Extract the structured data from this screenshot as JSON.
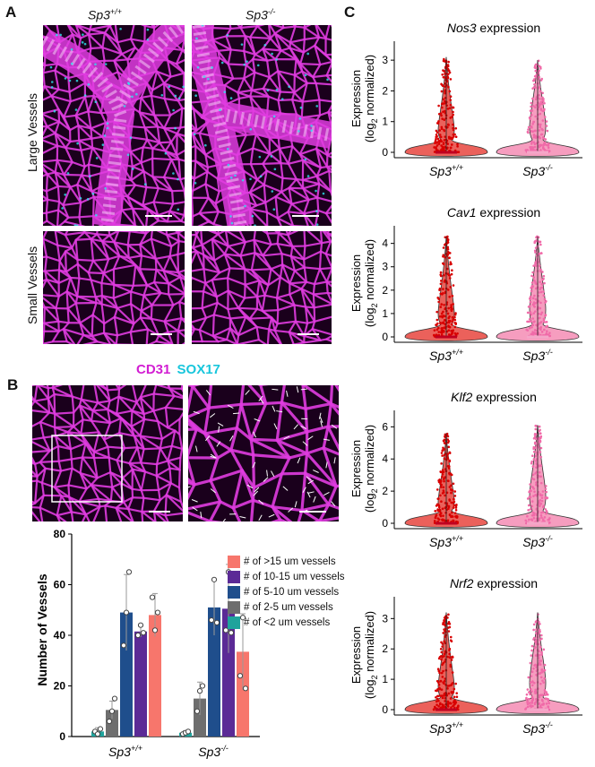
{
  "panels": {
    "a": "A",
    "b": "B",
    "c": "C"
  },
  "panel_a": {
    "col1": "Sp3",
    "col1_sup": "+/+",
    "col2": "Sp3",
    "col2_sup": "-/-",
    "row1": "Large Vessels",
    "row2": "Small Vessels"
  },
  "panel_b": {
    "stain1": "CD31",
    "stain2": "SOX17",
    "stain1_color": "#d21ed2",
    "stain2_color": "#18c6dc"
  },
  "colors": {
    "magenta": "#e03ce0",
    "cyan": "#2ee6f0",
    "wt_violin": "#e8453e",
    "wt_points": "#d80000",
    "ko_violin": "#f48cb4",
    "ko_points": "#f06aa8"
  },
  "chart_data": [
    {
      "type": "bar",
      "ylabel": "Number of Vessels",
      "ylim": [
        0,
        80
      ],
      "yticks": [
        "0",
        "20",
        "40",
        "60",
        "80"
      ],
      "categories": [
        "Sp3+/+",
        "Sp3-/-"
      ],
      "category_labels": [
        {
          "main": "Sp3",
          "sup": "+/+"
        },
        {
          "main": "Sp3",
          "sup": "-/-"
        }
      ],
      "legend": "top-right",
      "series": [
        {
          "name": "# of <2 um vessels",
          "color": "#1fa39c",
          "values": [
            2,
            1.5
          ],
          "err": [
            1.5,
            0.8
          ],
          "points": [
            [
              2,
              1,
              3
            ],
            [
              1,
              1.5,
              2
            ]
          ]
        },
        {
          "name": "# of 2-5 um vessels",
          "color": "#6e6e6e",
          "values": [
            10.5,
            15
          ],
          "err": [
            3.5,
            6.5
          ],
          "points": [
            [
              6,
              10,
              15
            ],
            [
              10,
              18,
              20
            ]
          ]
        },
        {
          "name": "# of 5-10 um vessels",
          "color": "#1f4e8c",
          "values": [
            49,
            51
          ],
          "err": [
            15,
            11
          ],
          "points": [
            [
              36,
              49,
              65
            ],
            [
              46,
              62,
              45
            ]
          ]
        },
        {
          "name": "# of 10-15 um vessels",
          "color": "#5b2a96",
          "values": [
            41.5,
            50.5
          ],
          "err": [
            2.2,
            17.5
          ],
          "points": [
            [
              40,
              44,
              41
            ],
            [
              42,
              65,
              41
            ]
          ]
        },
        {
          "name": "# of >15 um vessels",
          "color": "#f7766c",
          "values": [
            48,
            33.5
          ],
          "err": [
            8.5,
            15
          ],
          "points": [
            [
              55,
              42,
              49
            ],
            [
              24,
              47,
              19
            ]
          ]
        }
      ],
      "legend_order": [
        "# of >15 um vessels",
        "# of 10-15 um vessels",
        "# of 5-10 um vessels",
        "# of 2-5 um vessels",
        "# of <2 um vessels"
      ]
    },
    {
      "type": "violin",
      "title_gene": "Nos3",
      "title_suffix": " expression",
      "ylabel_line1": "Expression",
      "ylabel_line2_pre": "(log",
      "ylabel_sub": "2",
      "ylabel_line2_post": " normalized)",
      "ylim": [
        0,
        3.5
      ],
      "yticks": [
        0,
        1,
        2,
        3
      ],
      "max": [
        3.1,
        3.0
      ],
      "categories": [
        {
          "main": "Sp3",
          "sup": "+/+"
        },
        {
          "main": "Sp3",
          "sup": "-/-"
        }
      ]
    },
    {
      "type": "violin",
      "title_gene": "Cav1",
      "title_suffix": " expression",
      "ylabel_line1": "Expression",
      "ylabel_line2_pre": "(log",
      "ylabel_sub": "2",
      "ylabel_line2_post": " normalized)",
      "ylim": [
        0,
        4.6
      ],
      "yticks": [
        0,
        1,
        2,
        3,
        4
      ],
      "max": [
        4.3,
        4.3
      ],
      "categories": [
        {
          "main": "Sp3",
          "sup": "+/+"
        },
        {
          "main": "Sp3",
          "sup": "-/-"
        }
      ]
    },
    {
      "type": "violin",
      "title_gene": "Klf2",
      "title_suffix": " expression",
      "ylabel_line1": "Expression",
      "ylabel_line2_pre": "(log",
      "ylabel_sub": "2",
      "ylabel_line2_post": " normalized)",
      "ylim": [
        0,
        6.8
      ],
      "yticks": [
        0,
        2,
        4,
        6
      ],
      "max": [
        5.6,
        6.1
      ],
      "categories": [
        {
          "main": "Sp3",
          "sup": "+/+"
        },
        {
          "main": "Sp3",
          "sup": "-/-"
        }
      ]
    },
    {
      "type": "violin",
      "title_gene": "Nrf2",
      "title_suffix": " expression",
      "ylabel_line1": "Expression",
      "ylabel_line2_pre": "(log",
      "ylabel_sub": "2",
      "ylabel_line2_post": " normalized)",
      "ylim": [
        0,
        3.6
      ],
      "yticks": [
        0,
        1,
        2,
        3
      ],
      "max": [
        3.2,
        3.2
      ],
      "categories": [
        {
          "main": "Sp3",
          "sup": "+/+"
        },
        {
          "main": "Sp3",
          "sup": "-/-"
        }
      ]
    }
  ]
}
